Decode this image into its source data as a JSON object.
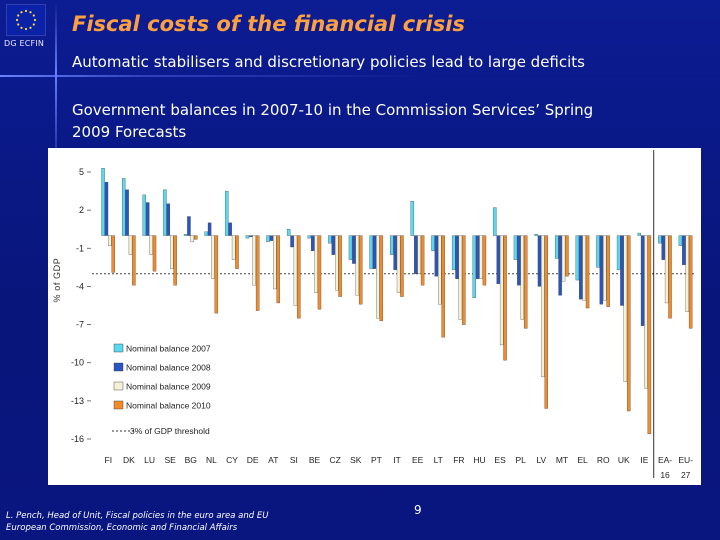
{
  "header": {
    "dg_label": "DG ECFIN",
    "title": "Fiscal costs of the financial crisis",
    "subtitle": "Automatic stabilisers and discretionary policies lead to large deficits"
  },
  "caption": {
    "line1": "Government balances in 2007-10 in the Commission Services’ Spring",
    "line2": "2009 Forecasts"
  },
  "footer": {
    "line1": "L. Pench, Head of Unit, Fiscal policies in the euro area and EU",
    "line2": "European Commission, Economic and Financial Affairs",
    "page_number": "9"
  },
  "colors": {
    "background": "#0b1a8a",
    "title": "#ffa040",
    "series": [
      "#5ad8ee",
      "#2a55c0",
      "#f3f1d6",
      "#f08a2a"
    ],
    "threshold": "#444444"
  },
  "chart_data": {
    "type": "bar",
    "ylabel": "% of GDP",
    "ylim": [
      -16,
      5
    ],
    "yticks": [
      5,
      2,
      -1,
      -4,
      -7,
      -10,
      -13,
      -16
    ],
    "categories": [
      "FI",
      "DK",
      "LU",
      "SE",
      "BG",
      "NL",
      "CY",
      "DE",
      "AT",
      "SI",
      "BE",
      "CZ",
      "SK",
      "PT",
      "IT",
      "EE",
      "LT",
      "FR",
      "HU",
      "ES",
      "PL",
      "LV",
      "MT",
      "EL",
      "RO",
      "UK",
      "IE",
      "EA-16",
      "EU-27"
    ],
    "category_labels_line1": [
      "FI",
      "DK",
      "LU",
      "SE",
      "BG",
      "NL",
      "CY",
      "DE",
      "AT",
      "SI",
      "BE",
      "CZ",
      "SK",
      "PT",
      "IT",
      "EE",
      "LT",
      "FR",
      "HU",
      "ES",
      "PL",
      "LV",
      "MT",
      "EL",
      "RO",
      "UK",
      "IE",
      "EA-",
      "EU-"
    ],
    "category_labels_line2": [
      "",
      "",
      "",
      "",
      "",
      "",
      "",
      "",
      "",
      "",
      "",
      "",
      "",
      "",
      "",
      "",
      "",
      "",
      "",
      "",
      "",
      "",
      "",
      "",
      "",
      "",
      "",
      "16",
      "27"
    ],
    "series": [
      {
        "name": "Nominal balance 2007",
        "values": [
          5.3,
          4.5,
          3.2,
          3.6,
          0.1,
          0.3,
          3.5,
          -0.2,
          -0.5,
          0.5,
          -0.2,
          -0.6,
          -1.9,
          -2.6,
          -1.5,
          2.7,
          -1.2,
          -2.7,
          -4.9,
          2.2,
          -1.9,
          0.1,
          -1.8,
          -3.5,
          -2.5,
          -2.7,
          0.2,
          -0.6,
          -0.8
        ]
      },
      {
        "name": "Nominal balance 2008",
        "values": [
          4.2,
          3.6,
          2.6,
          2.5,
          1.5,
          1.0,
          1.0,
          -0.1,
          -0.4,
          -0.9,
          -1.2,
          -1.5,
          -2.2,
          -2.6,
          -2.7,
          -3.0,
          -3.2,
          -3.4,
          -3.4,
          -3.8,
          -3.9,
          -4.0,
          -4.7,
          -5.0,
          -5.4,
          -5.5,
          -7.1,
          -1.9,
          -2.3
        ]
      },
      {
        "name": "Nominal balance 2009",
        "values": [
          -0.8,
          -1.5,
          -1.5,
          -2.6,
          -0.5,
          -3.4,
          -1.9,
          -3.9,
          -4.2,
          -5.5,
          -4.5,
          -4.3,
          -4.7,
          -6.5,
          -4.5,
          -3.0,
          -5.4,
          -6.6,
          -3.4,
          -8.6,
          -6.6,
          -11.1,
          -3.6,
          -5.1,
          -5.1,
          -11.5,
          -12.0,
          -5.3,
          -6.0
        ]
      },
      {
        "name": "Nominal balance 2010",
        "values": [
          -2.9,
          -3.9,
          -2.8,
          -3.9,
          -0.3,
          -6.1,
          -2.6,
          -5.9,
          -5.3,
          -6.5,
          -5.8,
          -4.8,
          -5.4,
          -6.7,
          -4.8,
          -3.9,
          -8.0,
          -7.0,
          -3.9,
          -9.8,
          -7.3,
          -13.6,
          -3.2,
          -5.7,
          -5.6,
          -13.8,
          -15.6,
          -6.5,
          -7.3
        ]
      }
    ],
    "threshold": {
      "label": "3% of GDP threshold",
      "value": -3
    },
    "legend_position": "bottom-left",
    "grid": false
  }
}
